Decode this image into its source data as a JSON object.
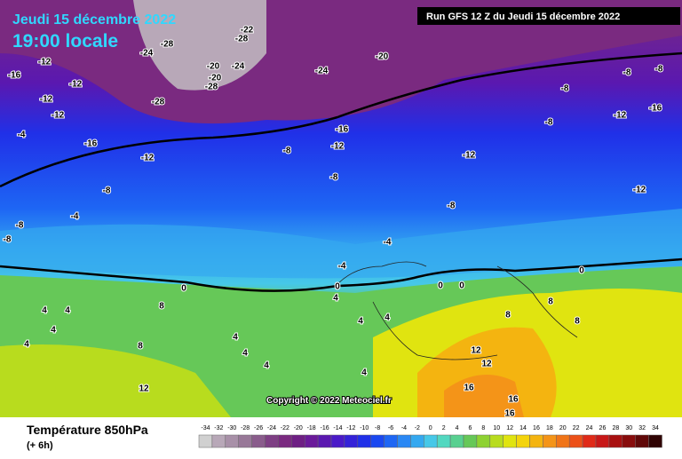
{
  "header": {
    "date": "Jeudi 15 décembre 2022",
    "time": "19:00 locale",
    "run": "Run GFS 12 Z du Jeudi 15 décembre 2022"
  },
  "copyright": "Copyright © 2022 Meteociel.fr",
  "legend": {
    "title": "Température 850hPa",
    "subtitle": "(+ 6h)",
    "values": [
      -34,
      -32,
      -30,
      -28,
      -26,
      -24,
      -22,
      -20,
      -18,
      -16,
      -14,
      -12,
      -10,
      -8,
      -6,
      -4,
      -2,
      0,
      2,
      4,
      6,
      8,
      10,
      12,
      14,
      16,
      18,
      20,
      22,
      24,
      26,
      28,
      30,
      32,
      34
    ],
    "colors": [
      "#d0d0d0",
      "#b8a8b8",
      "#a890a8",
      "#987898",
      "#8a5c8c",
      "#7e3f84",
      "#7a2a80",
      "#6e1f84",
      "#6a1a9a",
      "#5a18b0",
      "#4a1ac8",
      "#3422d8",
      "#2030e8",
      "#1a48f0",
      "#1e66f4",
      "#2a88f4",
      "#34a8f0",
      "#46c8e8",
      "#52d8c0",
      "#58d090",
      "#66c858",
      "#8ed232",
      "#b8dc1e",
      "#e0e410",
      "#f4d40c",
      "#f4b410",
      "#f49418",
      "#f07418",
      "#ec5018",
      "#e02a18",
      "#c81818",
      "#a81010",
      "#880c0c",
      "#600808",
      "#300404"
    ]
  },
  "map": {
    "contour_labels": [
      -28,
      -24,
      -20,
      -24,
      -20,
      -28,
      -28,
      -24,
      -20,
      -28,
      -22,
      -16,
      -12,
      -12,
      -12,
      -12,
      -16,
      -4,
      -12,
      -8,
      -4,
      -8,
      -8,
      -12,
      -16,
      -8,
      -8,
      -12,
      -8,
      -4,
      -4,
      0,
      4,
      0,
      -8,
      -8,
      -8,
      -8,
      -12,
      -16,
      -12,
      0,
      0,
      0,
      8,
      8,
      8,
      12,
      12,
      16,
      16,
      16,
      12,
      8,
      4,
      4,
      4,
      4,
      4,
      4,
      4,
      4,
      4,
      8,
      4
    ]
  }
}
